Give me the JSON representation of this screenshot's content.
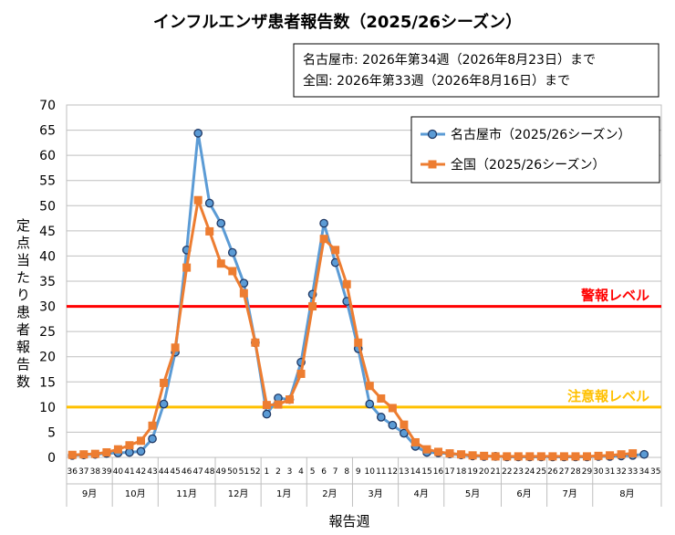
{
  "chart_data": {
    "type": "line",
    "title": "インフルエンザ患者報告数（2025/26シーズン）",
    "note_lines": [
      "名古屋市: 2026年第34週（2026年8月23日）まで",
      "全国: 2026年第33週（2026年8月16日）まで"
    ],
    "ylabel": "定点当たり患者報告数",
    "xlabel": "報告週",
    "ylim": [
      0,
      70
    ],
    "yticks": [
      0,
      5,
      10,
      15,
      20,
      25,
      30,
      35,
      40,
      45,
      50,
      55,
      60,
      65,
      70
    ],
    "grid": true,
    "legend_position": "top-right",
    "x": [
      "36",
      "37",
      "38",
      "39",
      "40",
      "41",
      "42",
      "43",
      "44",
      "45",
      "46",
      "47",
      "48",
      "49",
      "50",
      "51",
      "52",
      "1",
      "2",
      "3",
      "4",
      "5",
      "6",
      "7",
      "8",
      "9",
      "10",
      "11",
      "12",
      "13",
      "14",
      "15",
      "16",
      "17",
      "18",
      "19",
      "20",
      "21",
      "22",
      "23",
      "24",
      "25",
      "26",
      "27",
      "28",
      "29",
      "30",
      "31",
      "32",
      "33",
      "34",
      "35"
    ],
    "months": [
      {
        "label": "9月",
        "start": 0,
        "end": 3
      },
      {
        "label": "10月",
        "start": 4,
        "end": 7
      },
      {
        "label": "11月",
        "start": 8,
        "end": 12
      },
      {
        "label": "12月",
        "start": 13,
        "end": 16
      },
      {
        "label": "1月",
        "start": 17,
        "end": 20
      },
      {
        "label": "2月",
        "start": 21,
        "end": 24
      },
      {
        "label": "3月",
        "start": 25,
        "end": 28
      },
      {
        "label": "4月",
        "start": 29,
        "end": 32
      },
      {
        "label": "5月",
        "start": 33,
        "end": 37
      },
      {
        "label": "6月",
        "start": 38,
        "end": 41
      },
      {
        "label": "7月",
        "start": 42,
        "end": 45
      },
      {
        "label": "8月",
        "start": 46,
        "end": 51
      }
    ],
    "series": [
      {
        "name": "名古屋市（2025/26シーズン）",
        "color": "#5B9BD5",
        "marker": "circle",
        "values": [
          0.4,
          0.5,
          0.6,
          0.8,
          0.9,
          1.0,
          1.2,
          3.7,
          10.6,
          20.9,
          41.2,
          64.4,
          50.5,
          46.5,
          40.7,
          34.6,
          22.8,
          8.6,
          11.8,
          11.5,
          18.9,
          32.4,
          46.5,
          38.7,
          31.0,
          21.6,
          10.6,
          8.0,
          6.4,
          4.8,
          2.2,
          1.0,
          0.9,
          0.7,
          0.5,
          0.3,
          0.2,
          0.2,
          0.1,
          0.1,
          0.1,
          0.1,
          0.1,
          0.1,
          0.1,
          0.1,
          0.2,
          0.2,
          0.3,
          0.4,
          0.6,
          null
        ]
      },
      {
        "name": "全国（2025/26シーズン）",
        "color": "#ED7D31",
        "marker": "square",
        "values": [
          0.5,
          0.6,
          0.7,
          1.0,
          1.6,
          2.4,
          3.3,
          6.3,
          14.8,
          21.8,
          37.7,
          51.1,
          44.9,
          38.5,
          37.0,
          32.6,
          22.8,
          10.4,
          10.5,
          11.5,
          16.6,
          30.0,
          43.4,
          41.2,
          34.4,
          22.8,
          14.2,
          11.7,
          9.8,
          6.5,
          3.0,
          1.6,
          1.1,
          0.8,
          0.6,
          0.4,
          0.3,
          0.2,
          0.2,
          0.2,
          0.2,
          0.2,
          0.2,
          0.2,
          0.2,
          0.2,
          0.3,
          0.4,
          0.6,
          0.8,
          null,
          null
        ]
      }
    ],
    "reference_lines": [
      {
        "label": "警報レベル",
        "value": 30,
        "color": "#FF0000"
      },
      {
        "label": "注意報レベル",
        "value": 10,
        "color": "#FFC000"
      }
    ]
  }
}
